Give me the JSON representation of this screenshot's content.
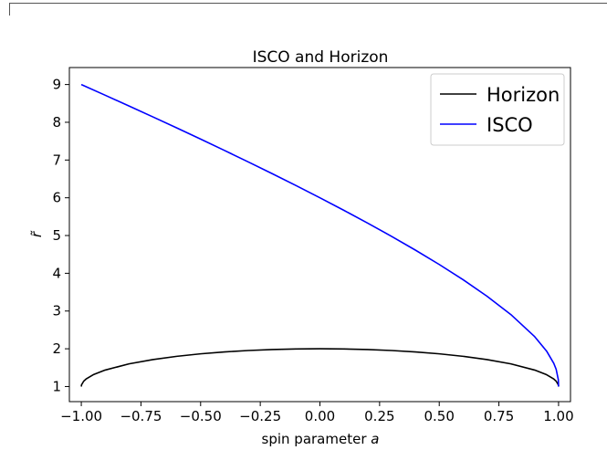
{
  "chart_data": {
    "type": "line",
    "title": "ISCO and Horizon",
    "xlabel": "spin parameter",
    "xlabel_var": "a",
    "ylabel": "r̃",
    "xlim": [
      -1.05,
      1.05
    ],
    "ylim": [
      0.6,
      9.45
    ],
    "xticks": [
      -1.0,
      -0.75,
      -0.5,
      -0.25,
      0.0,
      0.25,
      0.5,
      0.75,
      1.0
    ],
    "xtick_labels": [
      "−1.00",
      "−0.75",
      "−0.50",
      "−0.25",
      "0.00",
      "0.25",
      "0.50",
      "0.75",
      "1.00"
    ],
    "yticks": [
      1,
      2,
      3,
      4,
      5,
      6,
      7,
      8,
      9
    ],
    "ytick_labels": [
      "1",
      "2",
      "3",
      "4",
      "5",
      "6",
      "7",
      "8",
      "9"
    ],
    "grid": false,
    "legend_position": "top-right",
    "series": [
      {
        "name": "Horizon",
        "color": "#000000",
        "x": [
          -1.0,
          -0.999,
          -0.99,
          -0.98,
          -0.95,
          -0.9,
          -0.8,
          -0.7,
          -0.6,
          -0.5,
          -0.4,
          -0.3,
          -0.2,
          -0.1,
          0.0,
          0.1,
          0.2,
          0.3,
          0.4,
          0.5,
          0.6,
          0.7,
          0.8,
          0.9,
          0.95,
          0.98,
          0.99,
          0.999,
          1.0
        ],
        "values": [
          1.0,
          1.045,
          1.141,
          1.199,
          1.312,
          1.436,
          1.6,
          1.714,
          1.8,
          1.866,
          1.917,
          1.954,
          1.98,
          1.995,
          2.0,
          1.995,
          1.98,
          1.954,
          1.917,
          1.866,
          1.8,
          1.714,
          1.6,
          1.436,
          1.312,
          1.199,
          1.141,
          1.045,
          1.0
        ]
      },
      {
        "name": "ISCO",
        "color": "#0000ff",
        "x": [
          -1.0,
          -0.9,
          -0.8,
          -0.7,
          -0.6,
          -0.5,
          -0.4,
          -0.3,
          -0.2,
          -0.1,
          0.0,
          0.1,
          0.2,
          0.3,
          0.4,
          0.5,
          0.6,
          0.7,
          0.8,
          0.9,
          0.95,
          0.98,
          0.99,
          0.999,
          1.0
        ],
        "values": [
          9.0,
          8.717,
          8.432,
          8.143,
          7.851,
          7.555,
          7.254,
          6.949,
          6.639,
          6.323,
          6.0,
          5.669,
          5.329,
          4.979,
          4.614,
          4.233,
          3.829,
          3.393,
          2.907,
          2.321,
          1.937,
          1.614,
          1.455,
          1.18,
          1.0
        ]
      }
    ]
  }
}
